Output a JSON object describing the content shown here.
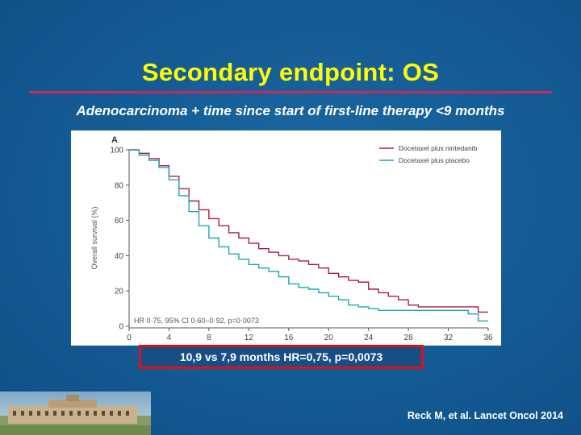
{
  "slide": {
    "title": "Secondary endpoint: OS",
    "subtitle": "Adenocarcinoma + time since start of first-line therapy <9 months",
    "result_box": "10,9 vs 7,9 months HR=0,75, p=0,0073",
    "citation": "Reck M, et al. Lancet Oncol 2014"
  },
  "colors": {
    "title": "#ffff00",
    "rule": "#c8285a",
    "box_border": "#e0101a",
    "series_nintedanib": "#b0194a",
    "series_placebo": "#1aa7b8"
  },
  "chart_data": {
    "type": "line",
    "panel_label": "A",
    "ylabel": "Overall survival (%)",
    "xlabel": "",
    "xlim": [
      0,
      36
    ],
    "ylim": [
      0,
      100
    ],
    "x_ticks": [
      0,
      4,
      8,
      12,
      16,
      20,
      24,
      28,
      32,
      36
    ],
    "y_ticks": [
      0,
      20,
      40,
      60,
      80,
      100
    ],
    "annotation": "HR 0·75, 95% CI 0·60–0·92, p=0·0073",
    "legend_position": "top-right",
    "series": [
      {
        "name": "Docetaxel plus nintedanib",
        "color": "#b0194a",
        "points": [
          [
            0,
            100
          ],
          [
            1,
            98
          ],
          [
            2,
            95
          ],
          [
            3,
            91
          ],
          [
            4,
            85
          ],
          [
            5,
            78
          ],
          [
            6,
            71
          ],
          [
            7,
            66
          ],
          [
            8,
            61
          ],
          [
            9,
            57
          ],
          [
            10,
            53
          ],
          [
            11,
            50
          ],
          [
            12,
            47
          ],
          [
            13,
            44
          ],
          [
            14,
            42
          ],
          [
            15,
            40
          ],
          [
            16,
            38
          ],
          [
            17,
            37
          ],
          [
            18,
            35
          ],
          [
            19,
            33
          ],
          [
            20,
            30
          ],
          [
            21,
            28
          ],
          [
            22,
            26
          ],
          [
            23,
            25
          ],
          [
            24,
            21
          ],
          [
            25,
            19
          ],
          [
            26,
            17
          ],
          [
            27,
            15
          ],
          [
            28,
            12
          ],
          [
            29,
            11
          ],
          [
            30,
            11
          ],
          [
            31,
            11
          ],
          [
            32,
            11
          ],
          [
            33,
            11
          ],
          [
            34,
            11
          ],
          [
            35,
            8
          ],
          [
            36,
            8
          ]
        ]
      },
      {
        "name": "Docetaxel plus placebo",
        "color": "#1aa7b8",
        "points": [
          [
            0,
            100
          ],
          [
            1,
            97
          ],
          [
            2,
            94
          ],
          [
            3,
            90
          ],
          [
            4,
            83
          ],
          [
            5,
            74
          ],
          [
            6,
            65
          ],
          [
            7,
            57
          ],
          [
            8,
            50
          ],
          [
            9,
            45
          ],
          [
            10,
            41
          ],
          [
            11,
            38
          ],
          [
            12,
            35
          ],
          [
            13,
            33
          ],
          [
            14,
            31
          ],
          [
            15,
            28
          ],
          [
            16,
            24
          ],
          [
            17,
            22
          ],
          [
            18,
            21
          ],
          [
            19,
            19
          ],
          [
            20,
            17
          ],
          [
            21,
            15
          ],
          [
            22,
            12
          ],
          [
            23,
            11
          ],
          [
            24,
            10
          ],
          [
            25,
            9
          ],
          [
            26,
            9
          ],
          [
            27,
            9
          ],
          [
            28,
            9
          ],
          [
            29,
            9
          ],
          [
            30,
            9
          ],
          [
            31,
            9
          ],
          [
            32,
            9
          ],
          [
            33,
            9
          ],
          [
            34,
            7
          ],
          [
            35,
            3
          ],
          [
            36,
            3
          ]
        ]
      }
    ]
  }
}
